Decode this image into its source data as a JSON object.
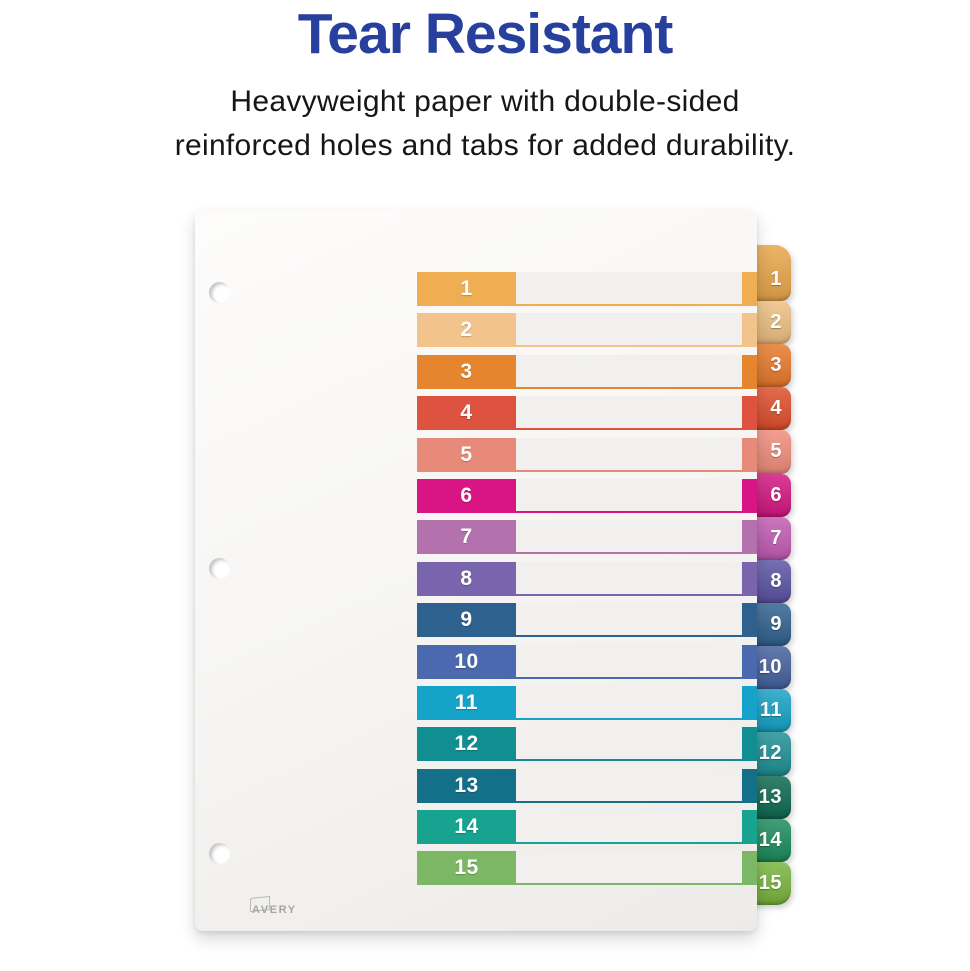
{
  "header": {
    "title": "Tear Resistant",
    "title_color": "#27409e",
    "subtitle_line1": "Heavyweight paper with double-sided",
    "subtitle_line2": "reinforced holes and tabs for added durability.",
    "text_color": "#161616"
  },
  "divider": {
    "brand": "AVERY",
    "row_track_color": "#f1f0ee",
    "rows": [
      {
        "label": "1",
        "color": "#efae51"
      },
      {
        "label": "2",
        "color": "#f2c48b"
      },
      {
        "label": "3",
        "color": "#e5852d"
      },
      {
        "label": "4",
        "color": "#dd5340"
      },
      {
        "label": "5",
        "color": "#e88a7a"
      },
      {
        "label": "6",
        "color": "#d91484"
      },
      {
        "label": "7",
        "color": "#b372ad"
      },
      {
        "label": "8",
        "color": "#7a64ad"
      },
      {
        "label": "9",
        "color": "#2f618f"
      },
      {
        "label": "10",
        "color": "#4a69ae"
      },
      {
        "label": "11",
        "color": "#15a3c9"
      },
      {
        "label": "12",
        "color": "#108e92"
      },
      {
        "label": "13",
        "color": "#147089"
      },
      {
        "label": "14",
        "color": "#17a390"
      },
      {
        "label": "15",
        "color": "#7cb766"
      }
    ],
    "tabs": [
      {
        "label": "1",
        "color": "#e7a64b"
      },
      {
        "label": "2",
        "color": "#edbf81"
      },
      {
        "label": "3",
        "color": "#e7792c"
      },
      {
        "label": "4",
        "color": "#df4f2d"
      },
      {
        "label": "5",
        "color": "#ef8d7c"
      },
      {
        "label": "6",
        "color": "#d31780"
      },
      {
        "label": "7",
        "color": "#c25cb3"
      },
      {
        "label": "8",
        "color": "#5c54a3"
      },
      {
        "label": "9",
        "color": "#32628f"
      },
      {
        "label": "10",
        "color": "#45629f"
      },
      {
        "label": "11",
        "color": "#18a2c6"
      },
      {
        "label": "12",
        "color": "#1f9095"
      },
      {
        "label": "13",
        "color": "#0f6a50"
      },
      {
        "label": "14",
        "color": "#1d8c5e"
      },
      {
        "label": "15",
        "color": "#79b43e"
      }
    ]
  }
}
